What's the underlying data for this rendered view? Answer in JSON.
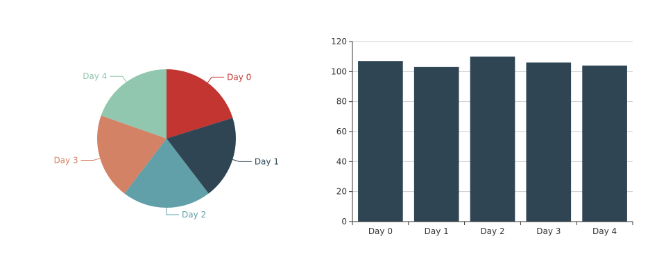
{
  "chart_data": [
    {
      "type": "pie",
      "categories": [
        "Day 0",
        "Day 1",
        "Day 2",
        "Day 3",
        "Day 4"
      ],
      "values": [
        107,
        103,
        110,
        106,
        104
      ],
      "colors": [
        "#c23531",
        "#2f4554",
        "#61a0a8",
        "#d48265",
        "#91c7ae"
      ],
      "start_angle_deg": 0,
      "direction": "clockwise",
      "label_placement": "outside-with-leader-lines"
    },
    {
      "type": "bar",
      "categories": [
        "Day 0",
        "Day 1",
        "Day 2",
        "Day 3",
        "Day 4"
      ],
      "values": [
        107,
        103,
        110,
        106,
        104
      ],
      "color": "#2f4554",
      "ylim": [
        0,
        120
      ],
      "yticks": [
        0,
        20,
        40,
        60,
        80,
        100,
        120
      ],
      "grid": "horizontal"
    }
  ]
}
